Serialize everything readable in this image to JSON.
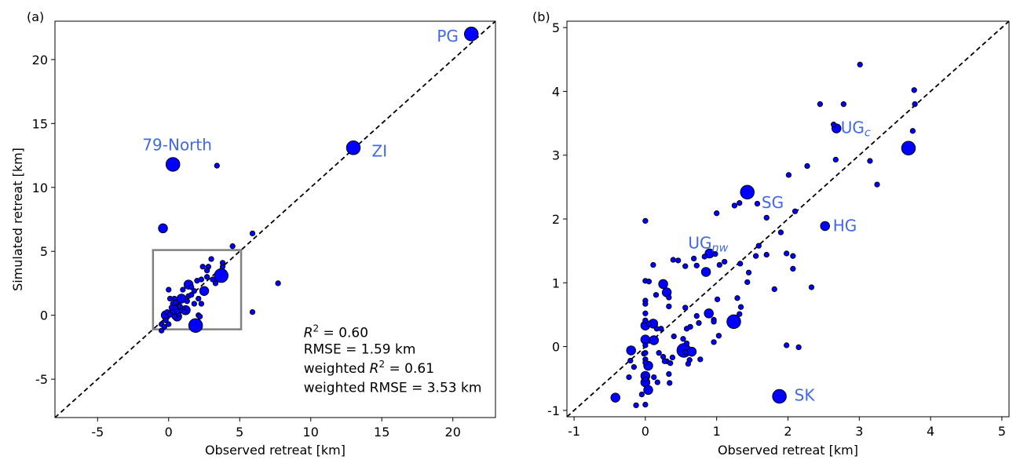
{
  "chart_data": [
    {
      "type": "scatter",
      "panel_label": "(a)",
      "xlabel": "Observed retreat [km]",
      "ylabel": "Simulated retreat [km]",
      "xlim": [
        -8,
        23
      ],
      "ylim": [
        -8,
        23
      ],
      "xticks": [
        -5,
        0,
        5,
        10,
        15,
        20
      ],
      "yticks": [
        -5,
        0,
        5,
        10,
        15,
        20
      ],
      "tick_labels_x": [
        "-5",
        "0",
        "5",
        "10",
        "15",
        "20"
      ],
      "tick_labels_y": [
        "-5",
        "0",
        "5",
        "10",
        "15",
        "20"
      ],
      "identity_line": true,
      "inset_box": [
        -1.1,
        -1.1,
        5.1,
        5.1
      ],
      "marker_color": "#0000ff",
      "label_color": "#4169e1",
      "points": [
        [
          21.3,
          22.0,
          3
        ],
        [
          13.0,
          13.1,
          3
        ],
        [
          0.3,
          11.8,
          3
        ],
        [
          -0.4,
          6.8,
          2
        ],
        [
          3.4,
          11.7,
          1
        ],
        [
          5.9,
          6.4,
          1
        ],
        [
          4.5,
          5.4,
          1
        ],
        [
          7.7,
          2.5,
          1
        ],
        [
          5.9,
          0.25,
          1
        ],
        [
          1.9,
          -0.8,
          3
        ],
        [
          2.5,
          1.9,
          2
        ],
        [
          1.4,
          2.4,
          2
        ],
        [
          3.7,
          3.1,
          3
        ],
        [
          1.2,
          0.4,
          2
        ],
        [
          0.9,
          1.3,
          2
        ],
        [
          -0.2,
          0,
          2
        ],
        [
          0.6,
          -0.1,
          2
        ],
        [
          -0.5,
          -1.2,
          1
        ],
        [
          3.0,
          4.4,
          1
        ],
        [
          3.8,
          4.1,
          1
        ],
        [
          3.8,
          3.8,
          1
        ],
        [
          2.4,
          3.8,
          1
        ],
        [
          2.8,
          3.8,
          1
        ],
        [
          2.7,
          3.5,
          1
        ],
        [
          2.7,
          3.0,
          1
        ],
        [
          3.1,
          2.8,
          1
        ],
        [
          3.3,
          2.5,
          1
        ],
        [
          2.0,
          2.7,
          1
        ],
        [
          2.3,
          2.8,
          1
        ],
        [
          0,
          2.0,
          1
        ],
        [
          1.0,
          2.0,
          1
        ],
        [
          1.6,
          2.2,
          1
        ],
        [
          1.8,
          1.9,
          1
        ],
        [
          2.1,
          1.3,
          1
        ],
        [
          1.8,
          0.9,
          1
        ],
        [
          2.3,
          0.9,
          1
        ],
        [
          2.1,
          0,
          1
        ],
        [
          2.2,
          -0.1,
          1
        ],
        [
          1.4,
          1.5,
          1
        ],
        [
          1.6,
          1.6,
          1
        ],
        [
          0.4,
          1.3,
          1
        ],
        [
          0.1,
          1.3,
          1
        ],
        [
          0.7,
          0.8,
          1
        ],
        [
          1.0,
          0.5,
          1
        ],
        [
          0.9,
          0.4,
          1
        ],
        [
          -0.1,
          0.25,
          1
        ],
        [
          0.1,
          0.05,
          1
        ],
        [
          0.4,
          -0.1,
          1
        ],
        [
          -0.2,
          -0.4,
          1
        ],
        [
          -0.5,
          -0.7,
          1
        ],
        [
          -0.3,
          -0.9,
          1
        ],
        [
          0,
          -0.7,
          1
        ],
        [
          0.7,
          0.1,
          1
        ],
        [
          1.1,
          0.25,
          1
        ],
        [
          0.8,
          0.7,
          1
        ],
        [
          0.3,
          0.9,
          1
        ],
        [
          0.4,
          0.4,
          2
        ],
        [
          0.2,
          0.6,
          1
        ],
        [
          0.5,
          1.0,
          1
        ],
        [
          0.6,
          0.3,
          1
        ],
        [
          1.3,
          1.1,
          1
        ]
      ],
      "labels": [
        {
          "text": "PG",
          "sub": "",
          "x": 20.4,
          "y": 21.4,
          "anchor": "end",
          "size": 20
        },
        {
          "text": "ZI",
          "sub": "",
          "x": 14.3,
          "y": 12.4,
          "anchor": "start",
          "size": 20
        },
        {
          "text": "79-North",
          "sub": "",
          "x": 0.6,
          "y": 12.9,
          "anchor": "middle",
          "size": 20
        }
      ],
      "stats": {
        "x": 9.5,
        "lines": [
          {
            "pre": "",
            "var": "R",
            "sup": "2",
            "post": " = 0.60",
            "y": -1.7
          },
          {
            "pre": "RMSE = 1.59 km",
            "var": "",
            "sup": "",
            "post": "",
            "y": -3.0
          },
          {
            "pre": "weighted ",
            "var": "R",
            "sup": "2",
            "post": " = 0.61",
            "y": -4.5
          },
          {
            "pre": "weighted RMSE = 3.53 km",
            "var": "",
            "sup": "",
            "post": "",
            "y": -6.0
          }
        ]
      }
    },
    {
      "type": "scatter",
      "panel_label": "(b)",
      "xlabel": "Observed retreat [km]",
      "ylabel": "",
      "xlim": [
        -1.1,
        5.1
      ],
      "ylim": [
        -1.1,
        5.1
      ],
      "xticks": [
        -1,
        0,
        1,
        2,
        3,
        4,
        5
      ],
      "yticks": [
        -1,
        0,
        1,
        2,
        3,
        4,
        5
      ],
      "tick_labels_x": [
        "-1",
        "0",
        "1",
        "2",
        "3",
        "4",
        "5"
      ],
      "tick_labels_y": [
        "-1",
        "0",
        "1",
        "2",
        "3",
        "4",
        "5"
      ],
      "identity_line": true,
      "marker_color": "#0000ff",
      "label_color": "#4169e1",
      "points": [
        [
          0,
          1.97,
          1
        ],
        [
          0.11,
          1.28,
          1
        ],
        [
          0,
          1.03,
          1
        ],
        [
          0.05,
          1.02,
          1
        ],
        [
          0.25,
          0.98,
          2
        ],
        [
          0.3,
          0.85,
          2
        ],
        [
          0.15,
          0.81,
          1
        ],
        [
          0.33,
          0.77,
          1
        ],
        [
          0,
          0.72,
          1
        ],
        [
          0,
          0.67,
          1
        ],
        [
          0.33,
          0.63,
          1
        ],
        [
          0,
          0.52,
          1
        ],
        [
          0,
          0.41,
          1
        ],
        [
          0,
          0.33,
          2
        ],
        [
          0.05,
          0.36,
          1
        ],
        [
          0.11,
          0.36,
          2
        ],
        [
          0.16,
          0.28,
          1
        ],
        [
          0.22,
          0.28,
          1
        ],
        [
          0,
          0.11,
          2
        ],
        [
          0.12,
          0.1,
          2
        ],
        [
          0,
          0.02,
          1
        ],
        [
          -0.2,
          -0.06,
          2
        ],
        [
          -0.02,
          -0.11,
          1
        ],
        [
          0,
          -0.1,
          1
        ],
        [
          0,
          -0.2,
          1
        ],
        [
          0,
          -0.25,
          1
        ],
        [
          0.04,
          -0.3,
          2
        ],
        [
          -0.21,
          -0.22,
          1
        ],
        [
          -0.16,
          -0.32,
          1
        ],
        [
          -0.23,
          -0.48,
          1
        ],
        [
          0,
          -0.46,
          2
        ],
        [
          0,
          -0.56,
          2
        ],
        [
          0,
          -0.51,
          1
        ],
        [
          0.04,
          -0.68,
          2
        ],
        [
          -0.05,
          -0.75,
          1
        ],
        [
          -0.42,
          -0.8,
          2
        ],
        [
          -0.13,
          -0.92,
          1
        ],
        [
          0,
          -0.91,
          1
        ],
        [
          0.19,
          -0.1,
          1
        ],
        [
          0.25,
          -0.16,
          1
        ],
        [
          0.3,
          -0.23,
          1
        ],
        [
          0.27,
          -0.23,
          1
        ],
        [
          0.35,
          -0.26,
          1
        ],
        [
          0.38,
          -0.17,
          1
        ],
        [
          0.12,
          -0.48,
          1
        ],
        [
          0.17,
          -0.56,
          1
        ],
        [
          0.33,
          -0.43,
          1
        ],
        [
          0.34,
          -0.57,
          1
        ],
        [
          0.4,
          0.16,
          1
        ],
        [
          0.53,
          0.12,
          1
        ],
        [
          0.58,
          0.05,
          1
        ],
        [
          0.54,
          -0.06,
          3
        ],
        [
          0.65,
          -0.08,
          2
        ],
        [
          0.56,
          -0.09,
          1
        ],
        [
          0.62,
          -0.21,
          1
        ],
        [
          0.6,
          -0.27,
          1
        ],
        [
          0.77,
          -0.2,
          1
        ],
        [
          0.58,
          0.28,
          1
        ],
        [
          0.63,
          0.31,
          1
        ],
        [
          0.72,
          0.48,
          1
        ],
        [
          0.75,
          0.37,
          1
        ],
        [
          0.89,
          0.52,
          2
        ],
        [
          0.96,
          0.42,
          1
        ],
        [
          0.96,
          0.39,
          1
        ],
        [
          0.96,
          0.07,
          1
        ],
        [
          1.03,
          0.17,
          1
        ],
        [
          1.01,
          0.74,
          1
        ],
        [
          1.24,
          0.39,
          3
        ],
        [
          1.29,
          0.76,
          1
        ],
        [
          1.34,
          0.62,
          1
        ],
        [
          1.32,
          0.51,
          1
        ],
        [
          0.56,
          0.61,
          1
        ],
        [
          0.56,
          1.26,
          1
        ],
        [
          0.39,
          1.36,
          1
        ],
        [
          0.46,
          1.35,
          1
        ],
        [
          0.68,
          1.38,
          1
        ],
        [
          0.72,
          1.27,
          1
        ],
        [
          0.83,
          1.41,
          1
        ],
        [
          0.9,
          1.46,
          2
        ],
        [
          0.98,
          1.45,
          1
        ],
        [
          0.85,
          1.17,
          2
        ],
        [
          1.04,
          1.28,
          1
        ],
        [
          1.11,
          1.33,
          1
        ],
        [
          1.33,
          1.3,
          1
        ],
        [
          1.43,
          1.01,
          1
        ],
        [
          1.45,
          1.16,
          1
        ],
        [
          1.0,
          2.09,
          1
        ],
        [
          1.25,
          2.21,
          1
        ],
        [
          1.32,
          2.25,
          1
        ],
        [
          1.43,
          2.42,
          3
        ],
        [
          1.57,
          2.24,
          1
        ],
        [
          1.7,
          2.02,
          1
        ],
        [
          1.55,
          1.42,
          1
        ],
        [
          1.59,
          1.58,
          1
        ],
        [
          1.7,
          1.44,
          1
        ],
        [
          1.81,
          0.9,
          1
        ],
        [
          1.9,
          1.79,
          1
        ],
        [
          1.88,
          -0.78,
          3
        ],
        [
          2.52,
          1.89,
          2
        ],
        [
          1.98,
          1.46,
          1
        ],
        [
          2.07,
          1.42,
          1
        ],
        [
          2.07,
          1.22,
          1
        ],
        [
          2.1,
          2.12,
          1
        ],
        [
          2.01,
          2.69,
          1
        ],
        [
          2.27,
          2.83,
          1
        ],
        [
          2.33,
          0.93,
          1
        ],
        [
          1.98,
          0.02,
          1
        ],
        [
          2.15,
          -0.01,
          1
        ],
        [
          2.45,
          3.8,
          1
        ],
        [
          2.78,
          3.8,
          1
        ],
        [
          2.64,
          3.48,
          1
        ],
        [
          2.68,
          3.42,
          2
        ],
        [
          2.67,
          2.93,
          1
        ],
        [
          3.01,
          4.42,
          1
        ],
        [
          3.15,
          2.91,
          1
        ],
        [
          3.25,
          2.54,
          1
        ],
        [
          3.77,
          4.02,
          1
        ],
        [
          3.78,
          3.8,
          1
        ],
        [
          3.75,
          3.38,
          1
        ],
        [
          3.69,
          3.11,
          3
        ]
      ],
      "labels": [
        {
          "text": "SG",
          "sub": "",
          "x": 1.63,
          "y": 2.17,
          "anchor": "start",
          "size": 20
        },
        {
          "text": "UG",
          "sub": "nw",
          "x": 0.6,
          "y": 1.54,
          "anchor": "start",
          "size": 20
        },
        {
          "text": "HG",
          "sub": "",
          "x": 2.63,
          "y": 1.81,
          "anchor": "start",
          "size": 20
        },
        {
          "text": "UG",
          "sub": "c",
          "x": 2.74,
          "y": 3.35,
          "anchor": "start",
          "size": 20
        },
        {
          "text": "SK",
          "sub": "",
          "x": 2.09,
          "y": -0.85,
          "anchor": "start",
          "size": 20
        }
      ]
    }
  ]
}
